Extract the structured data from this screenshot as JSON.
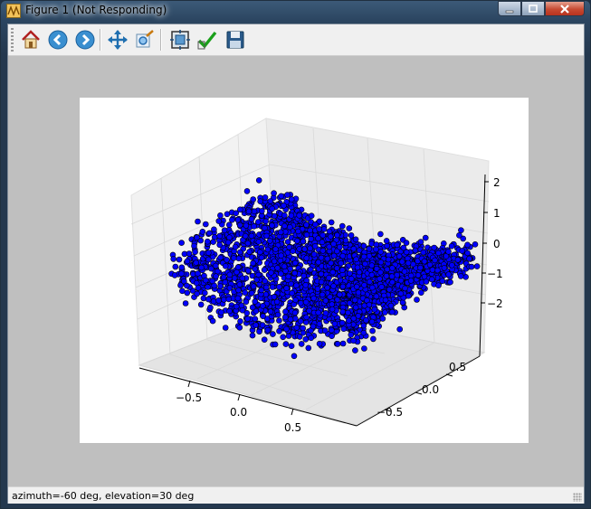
{
  "window": {
    "title": "Figure 1 (Not Responding)"
  },
  "toolbar": {
    "buttons": [
      {
        "name": "home"
      },
      {
        "name": "back"
      },
      {
        "name": "forward"
      },
      {
        "name": "pan"
      },
      {
        "name": "zoom"
      },
      {
        "name": "configure-subplots"
      },
      {
        "name": "edit-parameters"
      },
      {
        "name": "save"
      }
    ]
  },
  "status": {
    "text": "azimuth=-60 deg, elevation=30 deg"
  },
  "chart_data": {
    "type": "scatter",
    "projection": "3d",
    "marker_color": "#0000ff",
    "marker_edge": "#000000",
    "x_ticks": [
      "−0.5",
      "0.0",
      "0.5"
    ],
    "y_ticks": [
      "−0.5",
      "0.0",
      "0.5"
    ],
    "z_ticks": [
      "2",
      "1",
      "0",
      "−1",
      "−2"
    ],
    "xlim": [
      -1,
      1
    ],
    "ylim": [
      -1,
      1
    ],
    "zlim": [
      -2.5,
      2.5
    ],
    "view": {
      "azimuth": -60,
      "elevation": 30
    },
    "grid": true
  }
}
